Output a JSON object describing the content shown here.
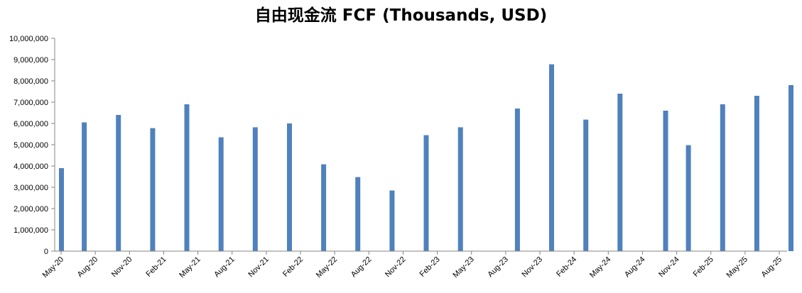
{
  "chart_data": {
    "type": "bar",
    "title": "自由现金流 FCF (Thousands, USD)",
    "xlabel": "",
    "ylabel": "",
    "ylim": [
      0,
      10000000
    ],
    "y_ticks": [
      "0",
      "1,000,000",
      "2,000,000",
      "3,000,000",
      "4,000,000",
      "5,000,000",
      "6,000,000",
      "7,000,000",
      "8,000,000",
      "9,000,000",
      "10,000,000"
    ],
    "y_tick_values": [
      0,
      1000000,
      2000000,
      3000000,
      4000000,
      5000000,
      6000000,
      7000000,
      8000000,
      9000000,
      10000000
    ],
    "x_tick_labels": [
      "May-20",
      "Aug-20",
      "Nov-20",
      "Feb-21",
      "May-21",
      "Aug-21",
      "Nov-21",
      "Feb-22",
      "May-22",
      "Aug-22",
      "Nov-22",
      "Feb-23",
      "May-23",
      "Aug-23",
      "Nov-23",
      "Feb-24",
      "May-24",
      "Aug-24",
      "Nov-24",
      "Feb-25",
      "May-25",
      "Aug-25"
    ],
    "bars": [
      {
        "x": "2020-05",
        "value": 3900000
      },
      {
        "x": "2020-07",
        "value": 6050000
      },
      {
        "x": "2020-10",
        "value": 6400000
      },
      {
        "x": "2021-01",
        "value": 5780000
      },
      {
        "x": "2021-04",
        "value": 6900000
      },
      {
        "x": "2021-07",
        "value": 5350000
      },
      {
        "x": "2021-10",
        "value": 5820000
      },
      {
        "x": "2022-01",
        "value": 6000000
      },
      {
        "x": "2022-04",
        "value": 4080000
      },
      {
        "x": "2022-07",
        "value": 3480000
      },
      {
        "x": "2022-10",
        "value": 2850000
      },
      {
        "x": "2023-01",
        "value": 5450000
      },
      {
        "x": "2023-04",
        "value": 5820000
      },
      {
        "x": "2023-09",
        "value": 6700000
      },
      {
        "x": "2023-12",
        "value": 8780000
      },
      {
        "x": "2024-03",
        "value": 6180000
      },
      {
        "x": "2024-06",
        "value": 7400000
      },
      {
        "x": "2024-10",
        "value": 6600000
      },
      {
        "x": "2024-12",
        "value": 4980000
      },
      {
        "x": "2025-03",
        "value": 6900000
      },
      {
        "x": "2025-06",
        "value": 7300000
      },
      {
        "x": "2025-09",
        "value": 7800000
      }
    ],
    "bar_color": "#4f81bd",
    "axis_color": "#868686",
    "grid": false,
    "legend": "none"
  }
}
